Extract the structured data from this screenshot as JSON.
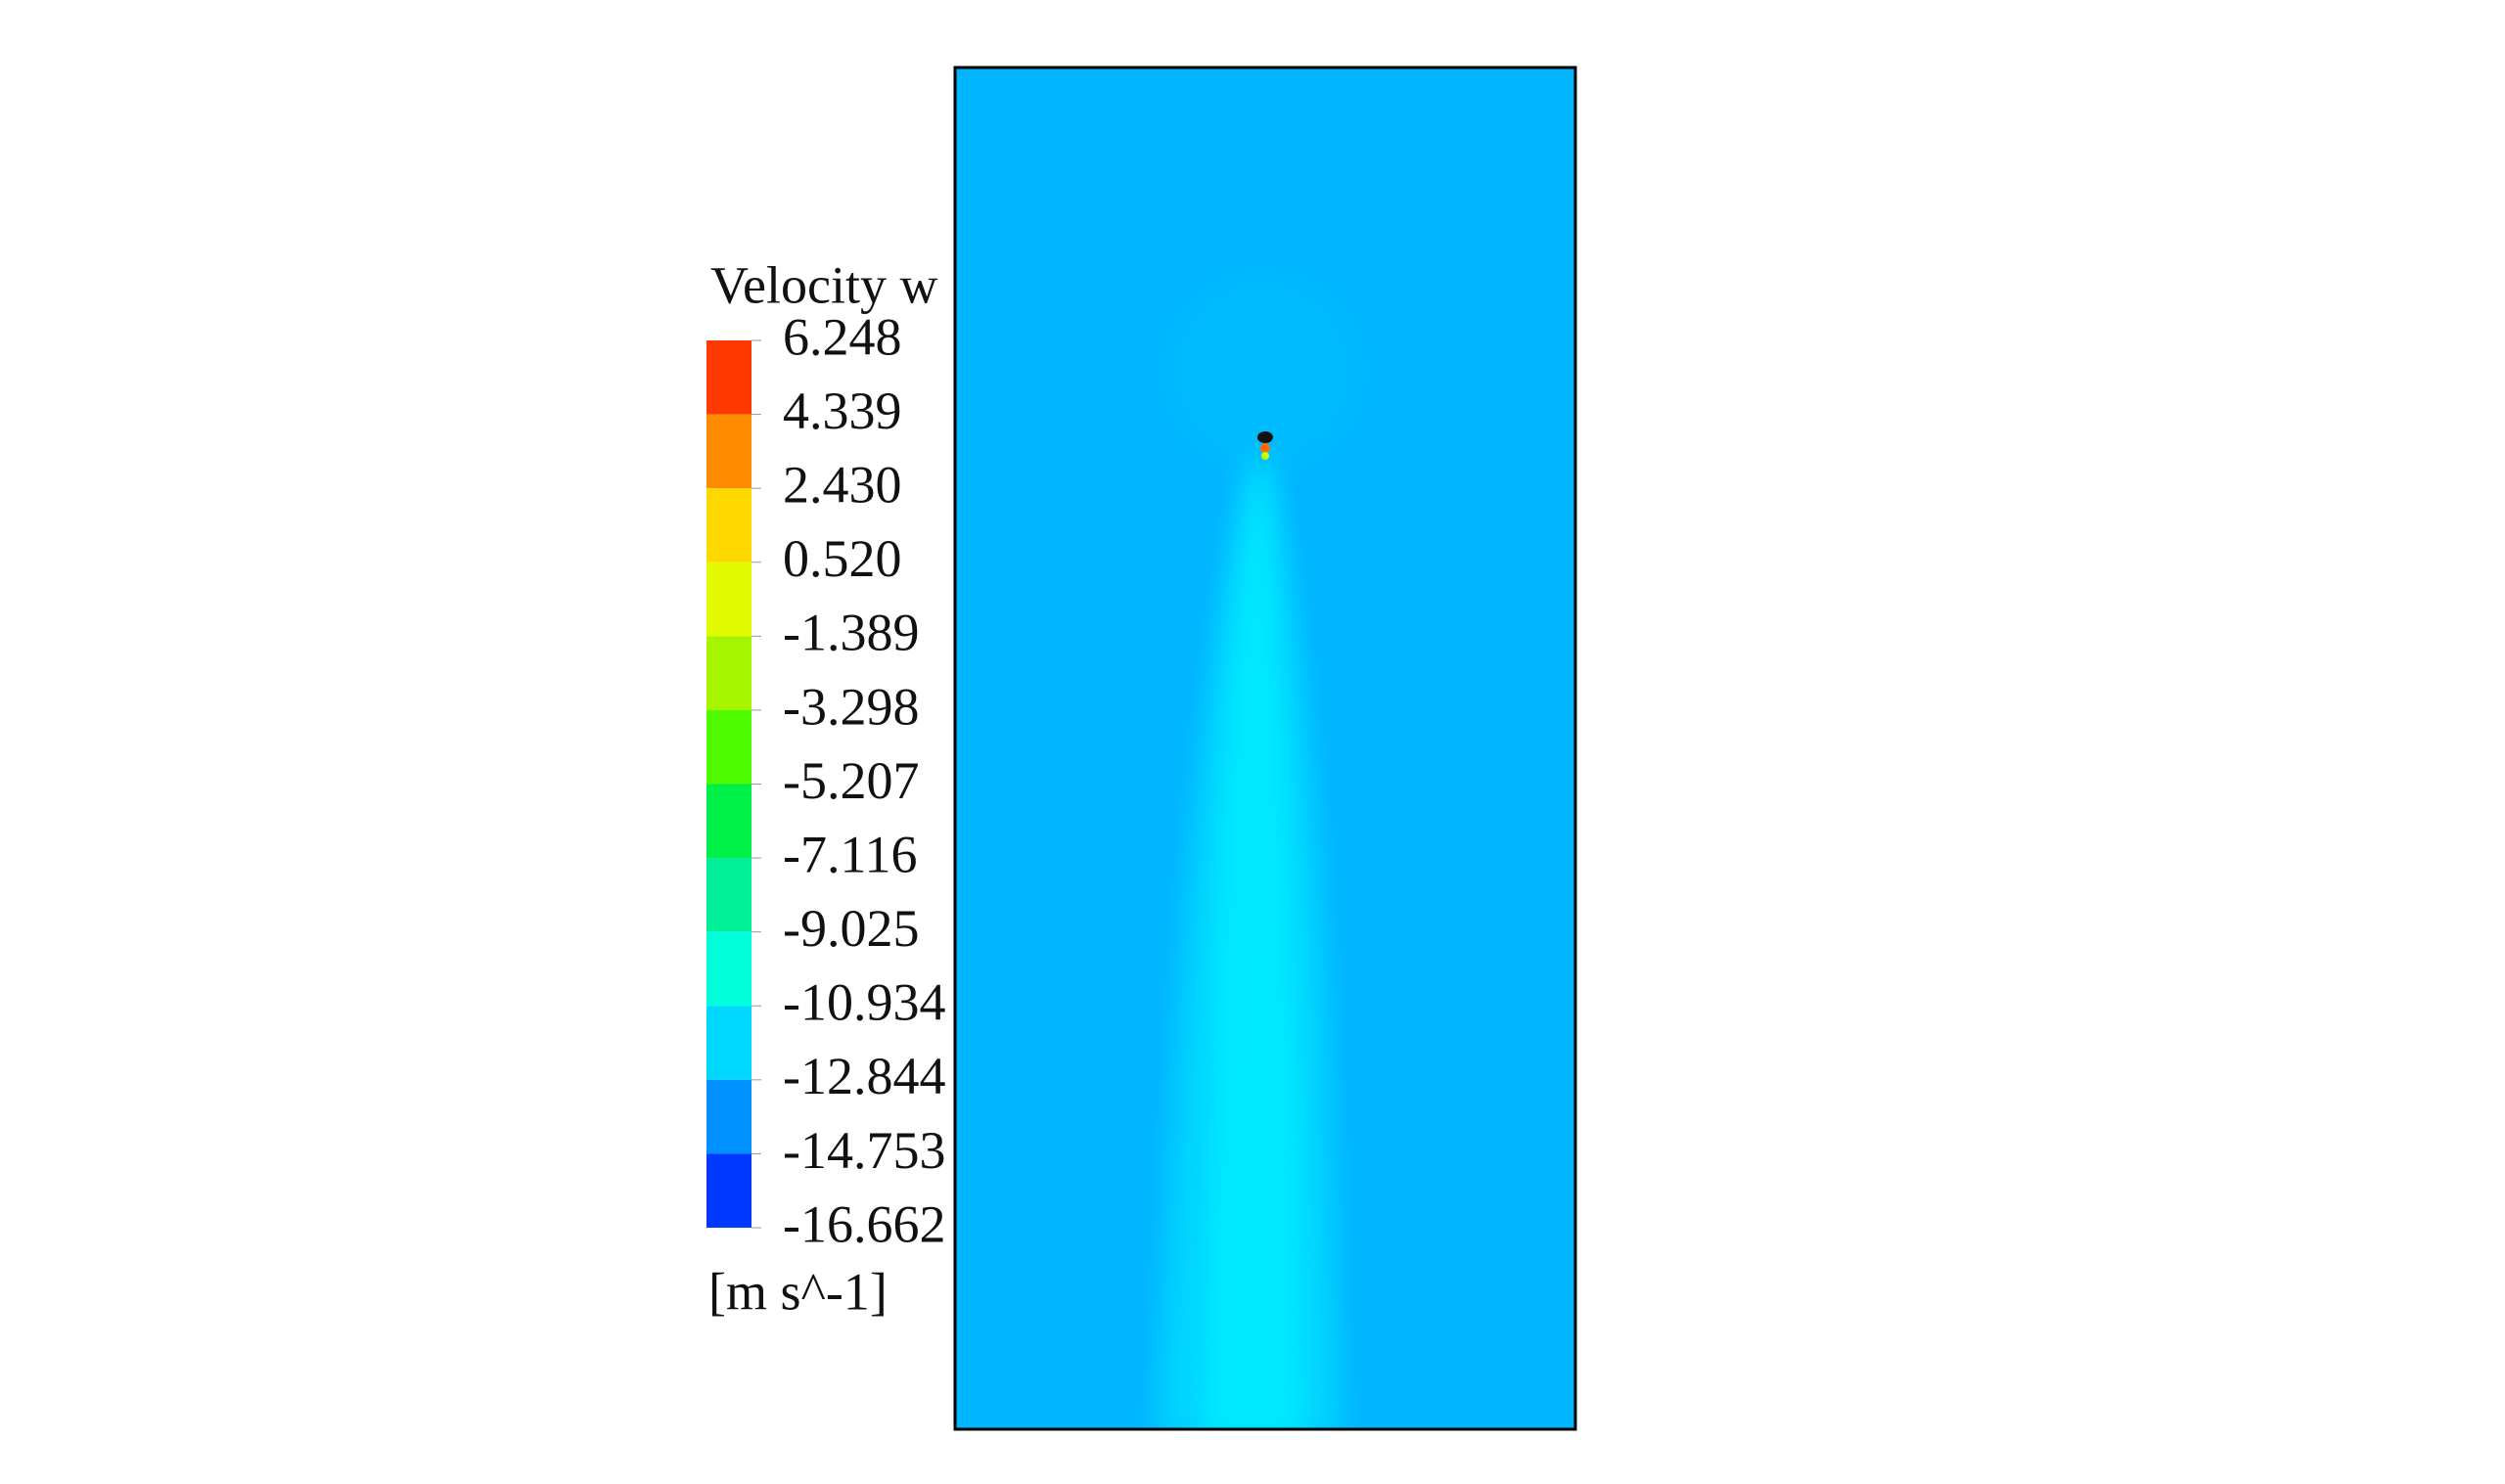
{
  "chart_data": {
    "type": "contour",
    "title": "Velocity w",
    "unit": "[m s^-1]",
    "clim": [
      -16.662,
      6.248
    ],
    "cticks": [
      6.248,
      4.339,
      {
        "value": 2.43,
        "label": "2.430"
      },
      {
        "value": 0.52,
        "label": "0.520"
      },
      -1.389,
      -3.298,
      -5.207,
      -7.116,
      -9.025,
      -10.934,
      -12.844,
      -14.753,
      -16.662
    ],
    "colors": [
      "#ff3a00",
      "#ff8c00",
      "#ffd800",
      "#e2fb00",
      "#a6f400",
      "#50fb00",
      "#00f04a",
      "#00f09a",
      "#00ffd8",
      "#00d8ff",
      "#0090ff",
      "#0038ff"
    ]
  }
}
